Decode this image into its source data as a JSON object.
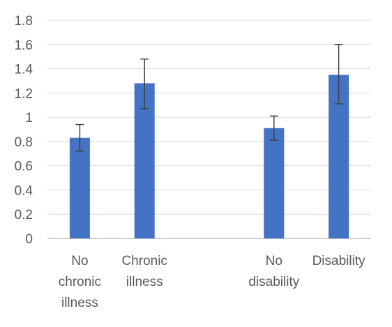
{
  "chart_data": {
    "type": "bar",
    "title": "",
    "xlabel": "",
    "ylabel": "",
    "ylim": [
      0,
      1.8
    ],
    "y_ticks": [
      "0",
      "0.2",
      "0.4",
      "0.6",
      "0.8",
      "1",
      "1.2",
      "1.4",
      "1.6",
      "1.8"
    ],
    "grid": true,
    "legend": "none",
    "categories": [
      "No chronic illness",
      "Chronic illness",
      "",
      "No disability",
      "Disability"
    ],
    "category_label_lines": [
      [
        "No",
        "chronic",
        "illness"
      ],
      [
        "Chronic",
        "illness"
      ],
      [],
      [
        "No",
        "disability"
      ],
      [
        "Disability"
      ]
    ],
    "values": [
      0.83,
      1.28,
      null,
      0.91,
      1.35
    ],
    "error_low": [
      0.72,
      1.07,
      null,
      0.81,
      1.11
    ],
    "error_high": [
      0.94,
      1.48,
      null,
      1.01,
      1.6
    ],
    "colors": {
      "bar": "#4472c4",
      "error_bar": "#404040",
      "grid": "#d9d9d9",
      "axis": "#bfbfbf",
      "text": "#595959"
    }
  }
}
